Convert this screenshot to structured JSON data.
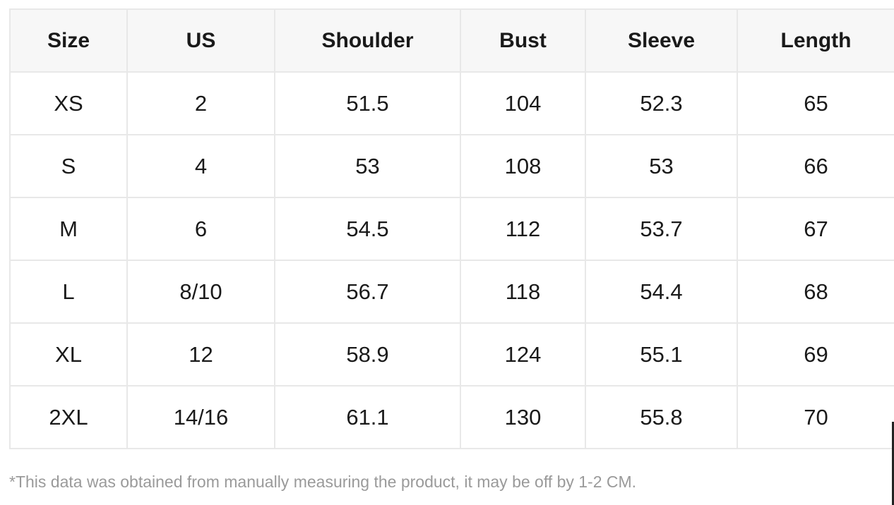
{
  "table": {
    "headers": [
      "Size",
      "US",
      "Shoulder",
      "Bust",
      "Sleeve",
      "Length"
    ],
    "rows": [
      [
        "XS",
        "2",
        "51.5",
        "104",
        "52.3",
        "65"
      ],
      [
        "S",
        "4",
        "53",
        "108",
        "53",
        "66"
      ],
      [
        "M",
        "6",
        "54.5",
        "112",
        "53.7",
        "67"
      ],
      [
        "L",
        "8/10",
        "56.7",
        "118",
        "54.4",
        "68"
      ],
      [
        "XL",
        "12",
        "58.9",
        "124",
        "55.1",
        "69"
      ],
      [
        "2XL",
        "14/16",
        "61.1",
        "130",
        "55.8",
        "70"
      ]
    ]
  },
  "footnote": "*This data was obtained from manually measuring the product, it may be off by 1-2 CM.",
  "colors": {
    "header_bg": "#f7f7f7",
    "border": "#e8e8e8",
    "text": "#1a1a1a",
    "footnote_text": "#9a9a9a"
  }
}
